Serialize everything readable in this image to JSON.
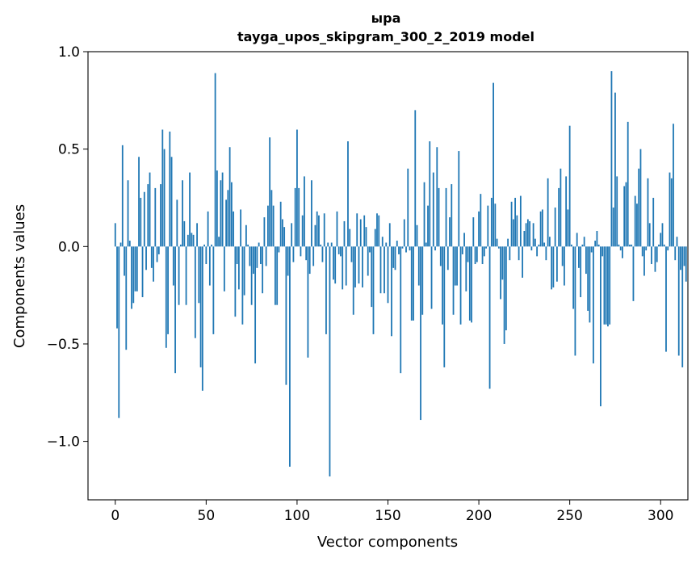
{
  "chart_data": {
    "type": "bar",
    "title": [
      "ыра",
      "tayga_upos_skipgram_300_2_2019 model"
    ],
    "xlabel": "Vector components",
    "ylabel": "Components values",
    "xlim": [
      -15,
      315
    ],
    "ylim": [
      -1.3,
      1.0
    ],
    "xticks": [
      0,
      50,
      100,
      150,
      200,
      250,
      300
    ],
    "yticks": [
      1.0,
      0.5,
      0.0,
      -0.5,
      -1.0
    ],
    "xtick_labels": [
      "0",
      "50",
      "100",
      "150",
      "200",
      "250",
      "300"
    ],
    "ytick_labels": [
      "1.0",
      "0.5",
      "0.0",
      "−0.5",
      "−1.0"
    ],
    "bar_color": "#1f77b4",
    "grid": false,
    "values": [
      0.12,
      -0.42,
      -0.88,
      0.02,
      0.52,
      -0.15,
      -0.53,
      0.34,
      0.03,
      -0.32,
      -0.29,
      -0.23,
      -0.23,
      0.46,
      0.25,
      -0.26,
      0.28,
      -0.12,
      0.32,
      0.38,
      -0.11,
      -0.18,
      0.3,
      -0.08,
      -0.04,
      0.32,
      0.6,
      0.5,
      -0.52,
      -0.45,
      0.59,
      0.46,
      -0.2,
      -0.65,
      0.24,
      -0.3,
      0.01,
      0.34,
      0.13,
      -0.3,
      0.06,
      0.38,
      0.07,
      0.06,
      -0.47,
      0.12,
      -0.29,
      -0.62,
      -0.74,
      0.01,
      -0.09,
      0.18,
      -0.2,
      0.01,
      -0.45,
      0.89,
      0.39,
      0.05,
      0.34,
      0.38,
      -0.23,
      0.24,
      0.29,
      0.51,
      0.33,
      0.18,
      -0.36,
      -0.09,
      -0.22,
      0.19,
      -0.4,
      -0.25,
      0.11,
      0.01,
      -0.1,
      -0.3,
      -0.14,
      -0.6,
      -0.11,
      0.02,
      -0.09,
      -0.24,
      0.15,
      -0.1,
      0.21,
      0.56,
      0.29,
      0.21,
      -0.3,
      -0.3,
      -0.03,
      0.23,
      0.14,
      0.1,
      -0.71,
      -0.15,
      -1.13,
      0.12,
      -0.08,
      0.3,
      0.6,
      0.3,
      -0.05,
      0.16,
      0.36,
      -0.07,
      -0.57,
      -0.14,
      0.34,
      -0.1,
      0.11,
      0.18,
      0.16,
      0.01,
      -0.08,
      0.17,
      -0.45,
      0.02,
      -1.18,
      0.02,
      -0.17,
      -0.19,
      0.18,
      -0.04,
      -0.05,
      -0.22,
      0.13,
      -0.2,
      0.54,
      0.09,
      -0.08,
      -0.35,
      -0.21,
      0.17,
      -0.19,
      0.14,
      -0.21,
      0.16,
      0.1,
      -0.15,
      -0.03,
      -0.31,
      -0.45,
      0.09,
      0.17,
      0.16,
      -0.24,
      0.05,
      -0.24,
      0.02,
      -0.29,
      0.12,
      -0.46,
      -0.11,
      -0.12,
      0.03,
      -0.04,
      -0.65,
      -0.01,
      0.14,
      -0.03,
      0.4,
      -0.02,
      -0.38,
      -0.38,
      0.7,
      0.11,
      -0.2,
      -0.89,
      -0.35,
      0.33,
      0.02,
      0.21,
      0.54,
      -0.32,
      0.38,
      -0.02,
      0.51,
      0.3,
      -0.1,
      -0.4,
      -0.62,
      0.3,
      -0.12,
      0.15,
      0.32,
      -0.35,
      -0.2,
      -0.2,
      0.49,
      -0.4,
      -0.04,
      0.07,
      -0.23,
      -0.08,
      -0.38,
      -0.39,
      0.15,
      -0.09,
      -0.08,
      0.18,
      0.27,
      -0.09,
      -0.05,
      -0.01,
      0.21,
      -0.73,
      0.25,
      0.84,
      0.22,
      0.04,
      -0.01,
      -0.27,
      -0.17,
      -0.5,
      -0.43,
      0.04,
      -0.07,
      0.23,
      0.14,
      0.25,
      0.16,
      -0.07,
      0.26,
      -0.16,
      0.08,
      0.12,
      0.14,
      0.13,
      -0.02,
      0.12,
      0.04,
      -0.05,
      0.01,
      0.18,
      0.19,
      0.02,
      -0.07,
      0.35,
      0.05,
      -0.22,
      -0.21,
      0.2,
      -0.18,
      0.3,
      0.4,
      -0.1,
      -0.2,
      0.36,
      0.19,
      0.62,
      0.01,
      -0.32,
      -0.56,
      0.07,
      -0.11,
      -0.26,
      0.01,
      0.05,
      -0.14,
      -0.33,
      -0.39,
      -0.03,
      -0.6,
      0.03,
      0.08,
      0.01,
      -0.82,
      -0.05,
      -0.4,
      -0.4,
      -0.41,
      -0.4,
      0.9,
      0.2,
      0.79,
      0.36,
      0.01,
      -0.02,
      -0.06,
      0.31,
      0.33,
      0.64,
      0.01,
      0.01,
      -0.28,
      0.26,
      0.22,
      0.4,
      0.5,
      -0.05,
      -0.15,
      -0.02,
      0.35,
      0.12,
      -0.09,
      0.25,
      -0.13,
      -0.08,
      0.01,
      0.07,
      0.12,
      0.01,
      -0.54,
      -0.02,
      0.38,
      0.35,
      0.63,
      -0.07,
      0.05,
      -0.56,
      -0.12,
      -0.62,
      -0.1,
      -0.18
    ]
  }
}
